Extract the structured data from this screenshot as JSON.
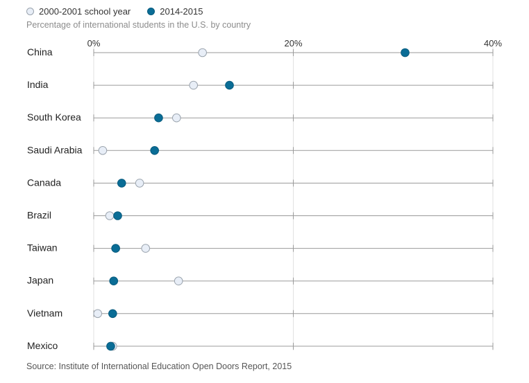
{
  "legend": [
    {
      "label": "2000-2001 school year",
      "color": "#e8eef7",
      "stroke": "#9aa3ad"
    },
    {
      "label": "2014-2015",
      "color": "#0a6d96",
      "stroke": "#075a7d"
    }
  ],
  "subtitle": "Percentage of international students in the U.S. by country",
  "source": "Source: Institute of International Education Open Doors Report, 2015",
  "chart_data": {
    "type": "scatter",
    "orientation": "horizontal-dot-plot",
    "xlim": [
      0,
      40
    ],
    "ticks": [
      {
        "value": 0,
        "label": "0%"
      },
      {
        "value": 20,
        "label": "20%"
      },
      {
        "value": 40,
        "label": "40%"
      }
    ],
    "categories": [
      "China",
      "India",
      "South Korea",
      "Saudi Arabia",
      "Canada",
      "Brazil",
      "Taiwan",
      "Japan",
      "Vietnam",
      "Mexico"
    ],
    "series": [
      {
        "name": "2000-2001 school year",
        "values": [
          10.9,
          10.0,
          8.3,
          0.9,
          4.6,
          1.6,
          5.2,
          8.5,
          0.4,
          1.9
        ]
      },
      {
        "name": "2014-2015",
        "values": [
          31.2,
          13.6,
          6.5,
          6.1,
          2.8,
          2.4,
          2.2,
          2.0,
          1.9,
          1.7
        ]
      }
    ],
    "grid": true
  }
}
